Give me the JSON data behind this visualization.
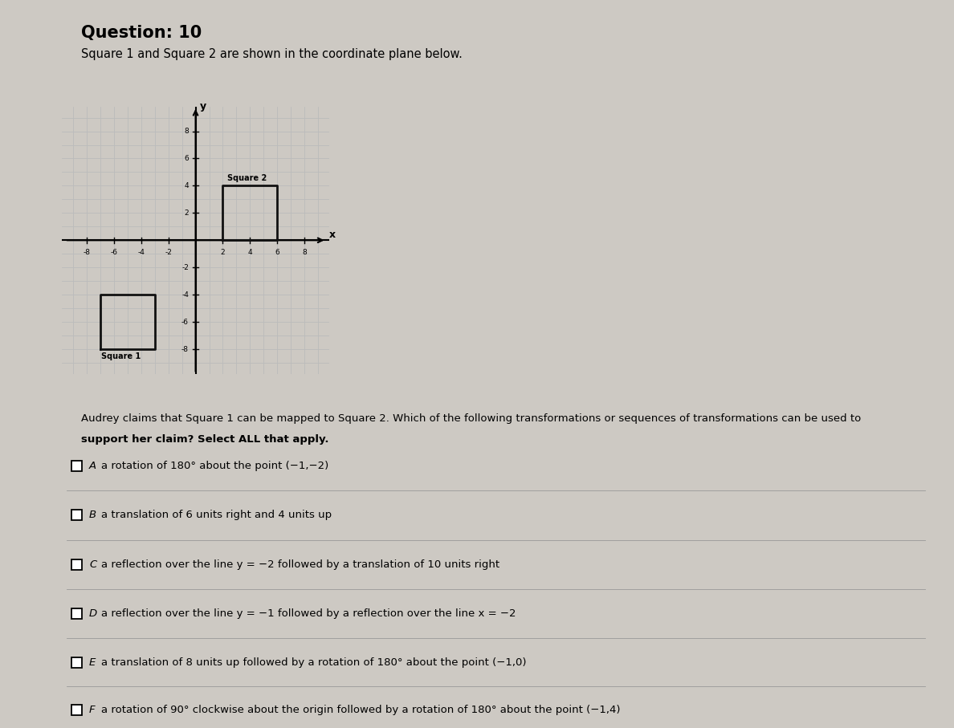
{
  "title": "Question: 10",
  "subtitle": "Square 1 and Square 2 are shown in the coordinate plane below.",
  "question_text_line1": "Audrey claims that Square 1 can be mapped to Square 2. Which of the following transformations or sequences of transformations can be used to",
  "question_text_line2": "support her claim? Select ALL that apply.",
  "square1_corners": [
    -7,
    -8,
    -3,
    -4
  ],
  "square2_corners": [
    2,
    0,
    6,
    4
  ],
  "square1_label": "Square 1",
  "square2_label": "Square 2",
  "axis_ticks": [
    -8,
    -6,
    -4,
    -2,
    2,
    4,
    6,
    8
  ],
  "grid_color": "#bbbbbb",
  "square_color": "#111111",
  "choices": [
    {
      "letter": "A",
      "text": "a rotation of 180° about the point (−1,−2)"
    },
    {
      "letter": "B",
      "text": "a translation of 6 units right and 4 units up"
    },
    {
      "letter": "C",
      "text": "a reflection over the line y = −2 followed by a translation of 10 units right"
    },
    {
      "letter": "D",
      "text": "a reflection over the line y = −1 followed by a reflection over the line x = −2"
    },
    {
      "letter": "E",
      "text": "a translation of 8 units up followed by a rotation of 180° about the point (−1,0)"
    },
    {
      "letter": "F",
      "text": "a rotation of 90° clockwise about the origin followed by a rotation of 180° about the point (−1,4)"
    }
  ],
  "bg_color": "#cdc9c3",
  "plot_bg_color": "#dedad5",
  "text_color": "#111111"
}
